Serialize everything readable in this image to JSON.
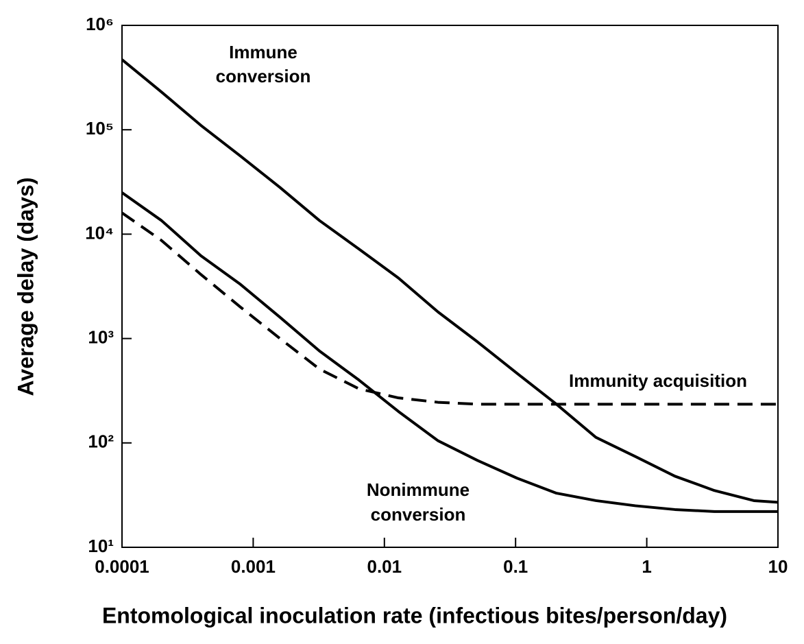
{
  "chart_data": {
    "type": "line",
    "x_label": "Entomological inoculation rate (infectious bites/person/day)",
    "y_label": "Average delay (days)",
    "log_x": true,
    "log_y": true,
    "xlim": [
      0.0001,
      10
    ],
    "ylim": [
      10,
      1000000
    ],
    "xticks": [
      0.0001,
      0.001,
      0.01,
      0.1,
      1,
      10
    ],
    "yticks": [
      {
        "value": 10,
        "label": "10¹"
      },
      {
        "value": 100,
        "label": "10²"
      },
      {
        "value": 1000,
        "label": "10³"
      },
      {
        "value": 10000,
        "label": "10⁴"
      },
      {
        "value": 100000,
        "label": "10⁵"
      },
      {
        "value": 1000000,
        "label": "10⁶"
      }
    ],
    "x": [
      0.0001,
      0.0002,
      0.0004,
      0.0008,
      0.0016,
      0.0032,
      0.0064,
      0.0128,
      0.0256,
      0.0512,
      0.1024,
      0.2048,
      0.4096,
      0.8192,
      1.6384,
      3.2768,
      6.5536,
      10
    ],
    "series": [
      {
        "color": "#000000",
        "dashed": false,
        "values": [
          470000,
          230000,
          110000,
          56000,
          28000,
          13500,
          7200,
          3800,
          1800,
          930,
          465,
          235,
          113,
          74,
          48,
          35,
          28,
          27
        ]
      },
      {
        "color": "#000000",
        "dashed": false,
        "values": [
          25000,
          13500,
          6200,
          3300,
          1600,
          760,
          400,
          200,
          105,
          68,
          46,
          33,
          28,
          25,
          23,
          22,
          22,
          22
        ]
      },
      {
        "color": "#000000",
        "dashed": true,
        "values": [
          16000,
          8700,
          4100,
          2000,
          1000,
          510,
          330,
          270,
          245,
          235,
          235,
          235,
          235,
          235,
          235,
          235,
          235,
          235
        ]
      }
    ],
    "annotations": [
      [
        "Immune",
        "conversion"
      ],
      [
        "Immunity acquisition"
      ],
      [
        "Nonimmune",
        "conversion"
      ]
    ]
  }
}
